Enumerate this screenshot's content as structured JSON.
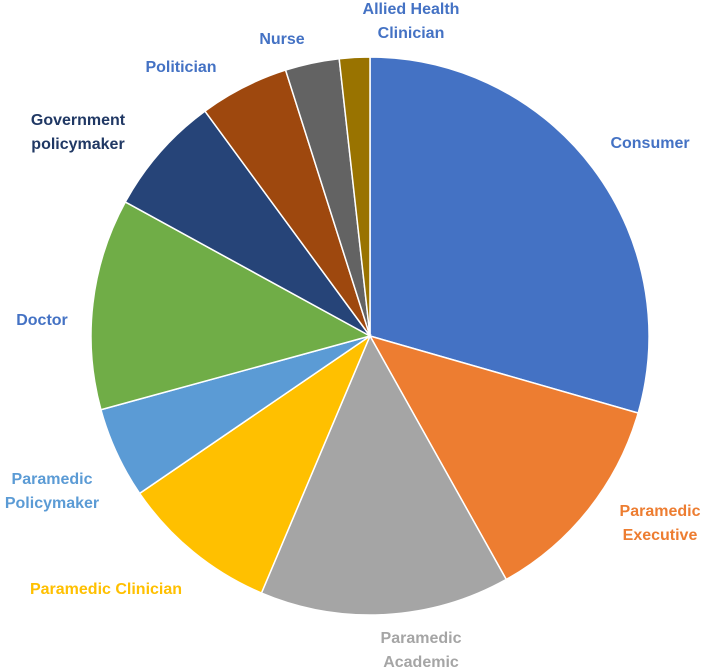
{
  "chart_data": {
    "type": "pie",
    "title": "",
    "legend": "none",
    "slices": [
      {
        "label": [
          "Consumer"
        ],
        "value": 30.1,
        "color": "#4472C4"
      },
      {
        "label": [
          "Paramedic",
          "Executive"
        ],
        "value": 12.7,
        "color": "#ED7D31"
      },
      {
        "label": [
          "Paramedic",
          "Academic"
        ],
        "value": 14.8,
        "color": "#A5A5A5"
      },
      {
        "label": [
          "Paramedic Clinician"
        ],
        "value": 9.3,
        "color": "#FFC000"
      },
      {
        "label": [
          "Paramedic",
          "Policymaker"
        ],
        "value": 5.4,
        "color": "#5B9BD5"
      },
      {
        "label": [
          "Doctor"
        ],
        "value": 12.5,
        "color": "#70AD47"
      },
      {
        "label": [
          "Government",
          "policymaker"
        ],
        "value": 7.1,
        "color": "#264478"
      },
      {
        "label": [
          "Politician"
        ],
        "value": 5.3,
        "color": "#9E480E"
      },
      {
        "label": [
          "Nurse"
        ],
        "value": 3.2,
        "color": "#636363"
      },
      {
        "label": [
          "Allied Health",
          "Clinician"
        ],
        "value": 1.8,
        "color": "#997300"
      }
    ],
    "label_colors": {
      "Consumer": "#4472C4",
      "Paramedic Executive": "#ED7D31",
      "Paramedic Academic": "#A5A5A5",
      "Paramedic Clinician": "#FFC000",
      "Paramedic Policymaker": "#5B9BD5",
      "Doctor": "#4472C4",
      "Government policymaker": "#203864",
      "Politician": "#4472C4",
      "Nurse": "#4472C4",
      "Allied Health Clinician": "#4472C4"
    }
  }
}
